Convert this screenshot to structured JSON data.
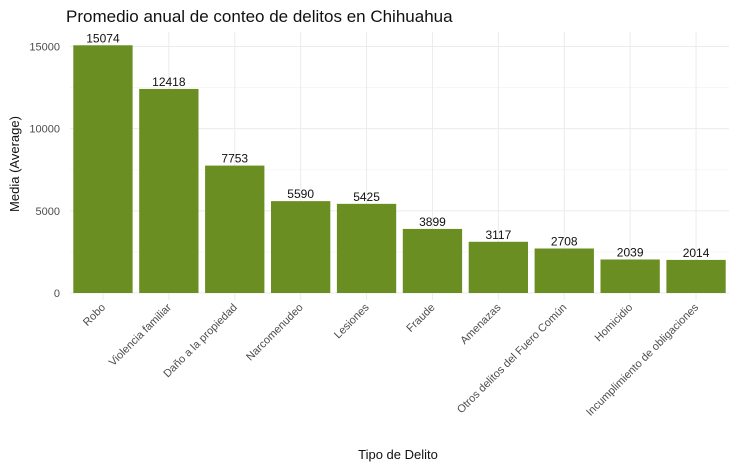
{
  "chart_data": {
    "type": "bar",
    "title": "Promedio anual de conteo de delitos en Chihuahua",
    "xlabel": "Tipo de Delito",
    "ylabel": "Media (Average)",
    "categories": [
      "Robo",
      "Violencia familiar",
      "Daño a la propiedad",
      "Narcomenudeo",
      "Lesiones",
      "Fraude",
      "Amenazas",
      "Otros delitos del Fuero Común",
      "Homicidio",
      "Incumplimiento de obligaciones"
    ],
    "values": [
      15074,
      12418,
      7753,
      5590,
      5425,
      3899,
      3117,
      2708,
      2039,
      2014
    ],
    "value_labels": [
      "15074",
      "12418",
      "7753",
      "5590",
      "5425",
      "3899",
      "3117",
      "2708",
      "2039",
      "2014"
    ],
    "yticks": [
      0,
      5000,
      10000,
      15000
    ],
    "ytick_labels": [
      "0",
      "5000",
      "10000",
      "15000"
    ],
    "ylim": [
      0,
      16000
    ],
    "grid": true,
    "legend": "none",
    "bar_color": "#6b8e23"
  }
}
